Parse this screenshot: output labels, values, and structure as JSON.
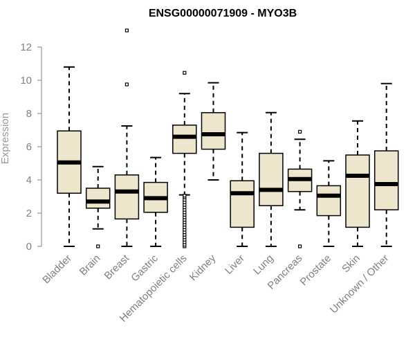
{
  "chart_data": {
    "type": "boxplot",
    "title": "ENSG00000071909 - MYO3B",
    "xlabel": "",
    "ylabel": "Expression",
    "ylim": [
      0,
      12
    ],
    "yticks": [
      0,
      2,
      4,
      6,
      8,
      10,
      12
    ],
    "categories": [
      "Bladder",
      "Brain",
      "Breast",
      "Gastric",
      "Hematopoietic cells",
      "Kidney",
      "Liver",
      "Lung",
      "Pancreas",
      "Prostate",
      "Skin",
      "Unknown / Other"
    ],
    "boxes": [
      {
        "name": "Bladder",
        "min": 0,
        "q1": 3.2,
        "median": 5.05,
        "q3": 6.95,
        "max": 10.8,
        "outliers": []
      },
      {
        "name": "Brain",
        "min": 1.05,
        "q1": 2.3,
        "median": 2.7,
        "q3": 3.5,
        "max": 4.8,
        "outliers": [
          0.0
        ]
      },
      {
        "name": "Breast",
        "min": 0,
        "q1": 1.65,
        "median": 3.3,
        "q3": 4.3,
        "max": 7.25,
        "outliers": [
          9.75,
          13.0
        ]
      },
      {
        "name": "Gastric",
        "min": 0,
        "q1": 2.05,
        "median": 2.9,
        "q3": 3.85,
        "max": 5.35,
        "outliers": []
      },
      {
        "name": "Hematopoietic cells",
        "min": 3.1,
        "q1": 5.6,
        "median": 6.6,
        "q3": 7.3,
        "max": 9.2,
        "outliers": [
          10.45,
          0.0,
          0.1,
          0.25,
          0.4,
          0.55,
          0.7,
          0.85,
          1.0,
          1.15,
          1.3,
          1.45,
          1.6,
          1.75,
          1.9,
          2.05,
          2.2,
          2.35,
          2.5,
          2.65,
          2.8,
          2.95,
          3.05
        ]
      },
      {
        "name": "Kidney",
        "min": 4.0,
        "q1": 5.85,
        "median": 6.75,
        "q3": 8.05,
        "max": 9.85,
        "outliers": []
      },
      {
        "name": "Liver",
        "min": 0,
        "q1": 1.15,
        "median": 3.2,
        "q3": 3.95,
        "max": 6.85,
        "outliers": []
      },
      {
        "name": "Lung",
        "min": 0,
        "q1": 2.45,
        "median": 3.4,
        "q3": 5.6,
        "max": 8.05,
        "outliers": []
      },
      {
        "name": "Pancreas",
        "min": 2.2,
        "q1": 3.3,
        "median": 4.05,
        "q3": 4.65,
        "max": 6.45,
        "outliers": [
          6.9,
          0.0
        ]
      },
      {
        "name": "Prostate",
        "min": 0,
        "q1": 1.85,
        "median": 3.05,
        "q3": 3.65,
        "max": 5.15,
        "outliers": []
      },
      {
        "name": "Skin",
        "min": 0,
        "q1": 1.15,
        "median": 4.25,
        "q3": 5.5,
        "max": 7.55,
        "outliers": []
      },
      {
        "name": "Unknown / Other",
        "min": 0,
        "q1": 2.2,
        "median": 3.75,
        "q3": 5.75,
        "max": 9.8,
        "outliers": []
      }
    ],
    "colors": {
      "box_fill": "#ede6cd",
      "box_stroke": "#000000",
      "axis": "#808080"
    }
  }
}
